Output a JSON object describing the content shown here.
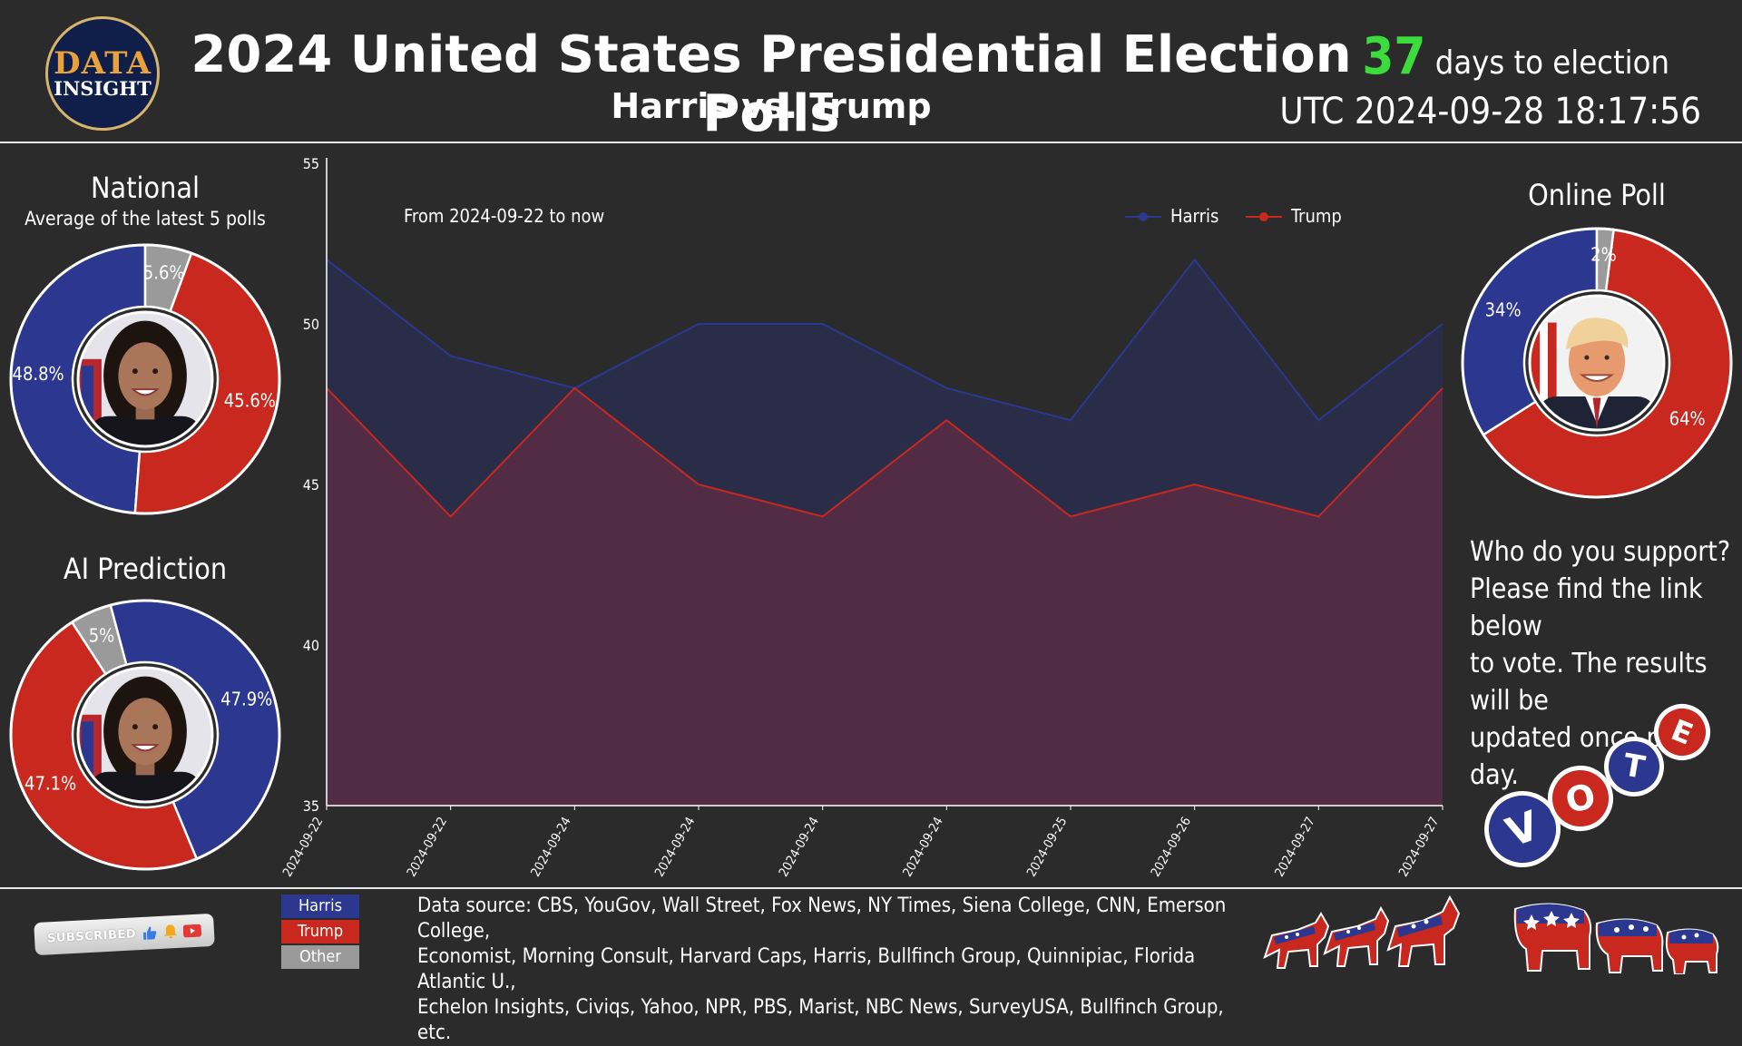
{
  "header": {
    "logo_line1": "DATA",
    "logo_line2": "INSIGHT",
    "title": "2024 United States Presidential Election Polls",
    "subtitle": "Harris vs. Trump",
    "days_number": "37",
    "days_label": "days to election",
    "clock": "UTC 2024-09-28 18:17:56"
  },
  "colors": {
    "harris": "#2c3890",
    "trump": "#c8281d",
    "other": "#9a9a9a",
    "background": "#2b2b2b",
    "countdown": "#3ddc3d"
  },
  "national": {
    "title": "National",
    "subtitle": "Average of the latest 5 polls",
    "photo": "harris-portrait",
    "labels": {
      "harris": "48.8%",
      "trump": "45.6%",
      "other": "5.6%"
    }
  },
  "ai_prediction": {
    "title": "AI Prediction",
    "photo": "harris-portrait",
    "labels": {
      "harris": "47.9%",
      "trump": "47.1%",
      "other": "5%"
    }
  },
  "online_poll": {
    "title": "Online Poll",
    "photo": "trump-portrait",
    "labels": {
      "harris": "34%",
      "trump": "64%",
      "other": "2%"
    }
  },
  "support_text": [
    "Who do you support?",
    "Please find the link below",
    "to vote. The results will be",
    "updated once per day."
  ],
  "vote_letters": [
    "V",
    "O",
    "T",
    "E"
  ],
  "bottom_legend": {
    "harris": "Harris",
    "trump": "Trump",
    "other": "Other"
  },
  "source_lines": [
    "Data source: CBS, YouGov, Wall Street, Fox News, NY Times, Siena College, CNN, Emerson College,",
    "Economist, Morning Consult, Harvard Caps, Harris, Bullfinch Group, Quinnipiac, Florida Atlantic U.,",
    "Echelon Insights, Civiqs, Yahoo, NPR, PBS, Marist, NBC News, SurveyUSA, Bullfinch Group, etc."
  ],
  "subscribe": {
    "label": "SUBSCRIBED",
    "icons": [
      "thumbs-up-icon",
      "bell-icon",
      "youtube-icon"
    ]
  },
  "mascots": {
    "left": "democratic-donkey-icon",
    "right": "republican-elephant-icon"
  },
  "chart_data": [
    {
      "type": "area",
      "title": "",
      "annotation": "From 2024-09-22 to now",
      "xlabel": "",
      "ylabel": "",
      "ylim": [
        35,
        55
      ],
      "yticks": [
        35,
        40,
        45,
        50,
        55
      ],
      "categories": [
        "2024-09-22",
        "2024-09-22",
        "2024-09-24",
        "2024-09-24",
        "2024-09-24",
        "2024-09-24",
        "2024-09-25",
        "2024-09-26",
        "2024-09-27",
        "2024-09-27"
      ],
      "legend_position": "top-right",
      "grid": false,
      "series": [
        {
          "name": "Harris",
          "values": [
            52,
            49,
            48,
            50,
            50,
            48,
            47,
            52,
            47,
            50
          ]
        },
        {
          "name": "Trump",
          "values": [
            48,
            44,
            48,
            45,
            44,
            47,
            44,
            45,
            44,
            48
          ]
        }
      ]
    },
    {
      "type": "pie",
      "title": "National",
      "categories": [
        "Harris",
        "Trump",
        "Other"
      ],
      "values": [
        48.8,
        45.6,
        5.6
      ]
    },
    {
      "type": "pie",
      "title": "AI Prediction",
      "categories": [
        "Harris",
        "Trump",
        "Other"
      ],
      "values": [
        47.9,
        47.1,
        5
      ]
    },
    {
      "type": "pie",
      "title": "Online Poll",
      "categories": [
        "Harris",
        "Trump",
        "Other"
      ],
      "values": [
        34,
        64,
        2
      ]
    }
  ]
}
